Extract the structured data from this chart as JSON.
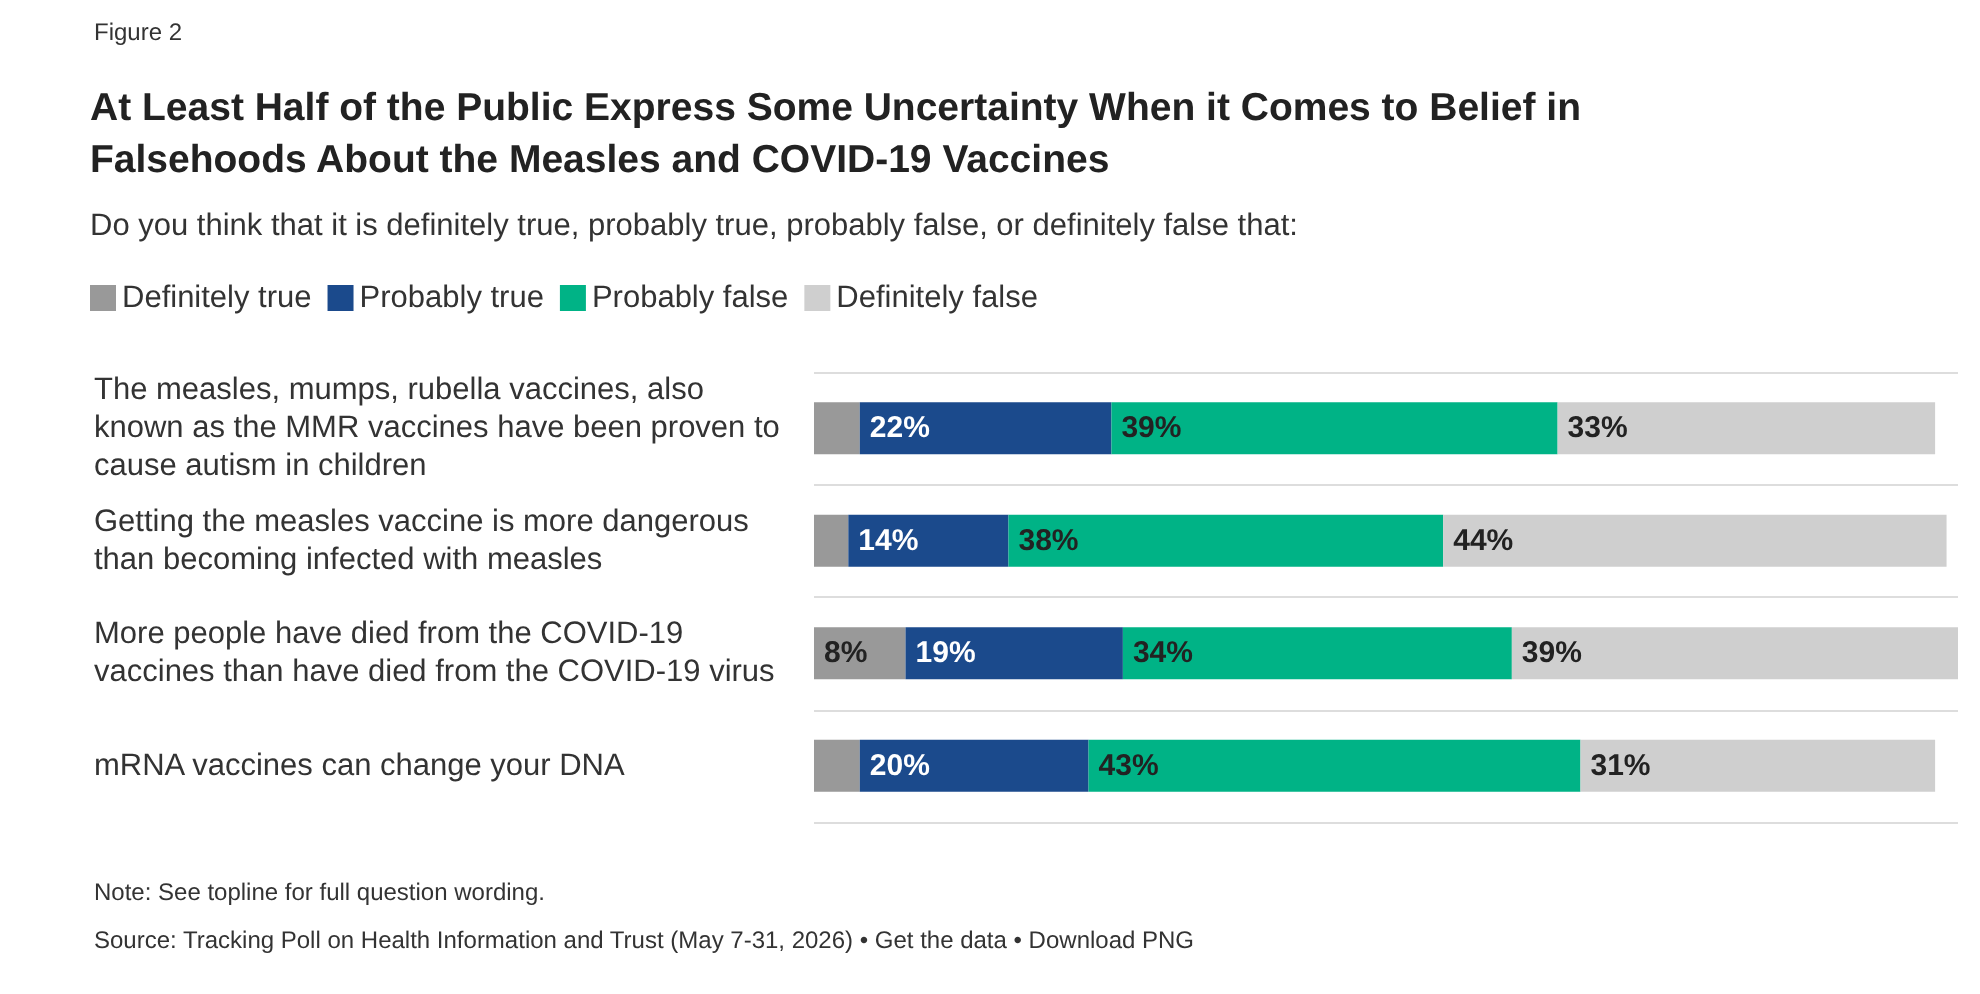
{
  "chart_data": {
    "type": "bar",
    "orientation": "horizontal",
    "stacked": true,
    "title": "At Least Half of the Public Express Some Uncertainty When it Comes to Belief in Falsehoods About the Measles and COVID-19 Vaccines",
    "subtitle": "Do you think that it is definitely true, probably true, probably false, or definitely false that:",
    "categories": [
      "The measles, mumps, rubella vaccines, also known as the MMR vaccines have been proven to cause autism in children",
      "Getting the measles vaccine is more dangerous than becoming infected with measles",
      "More people have died from the COVID-19 vaccines than have died from the COVID-19 virus",
      "mRNA vaccines can change your DNA"
    ],
    "series": [
      {
        "name": "Definitely true",
        "color": "#999999",
        "values": [
          4,
          3,
          8,
          4
        ],
        "value_labels": [
          null,
          null,
          "8%",
          null
        ]
      },
      {
        "name": "Probably true",
        "color": "#1b4a8c",
        "values": [
          22,
          14,
          19,
          20
        ],
        "value_labels": [
          "22%",
          "14%",
          "19%",
          "20%"
        ]
      },
      {
        "name": "Probably false",
        "color": "#00b386",
        "values": [
          39,
          38,
          34,
          43
        ],
        "value_labels": [
          "39%",
          "38%",
          "34%",
          "43%"
        ]
      },
      {
        "name": "Definitely false",
        "color": "#cfcfcf",
        "values": [
          33,
          44,
          39,
          31
        ],
        "value_labels": [
          "33%",
          "44%",
          "39%",
          "31%"
        ]
      }
    ],
    "xlim": [
      0,
      100
    ],
    "tick_labels": false,
    "legend": "top left",
    "grid": "y",
    "annotations": [
      "Figure 2",
      "Note: See topline for full question wording.",
      "Source: Tracking Poll on Health Information and Trust (May 7-31, 2026) • Get the data • Download PNG"
    ]
  }
}
